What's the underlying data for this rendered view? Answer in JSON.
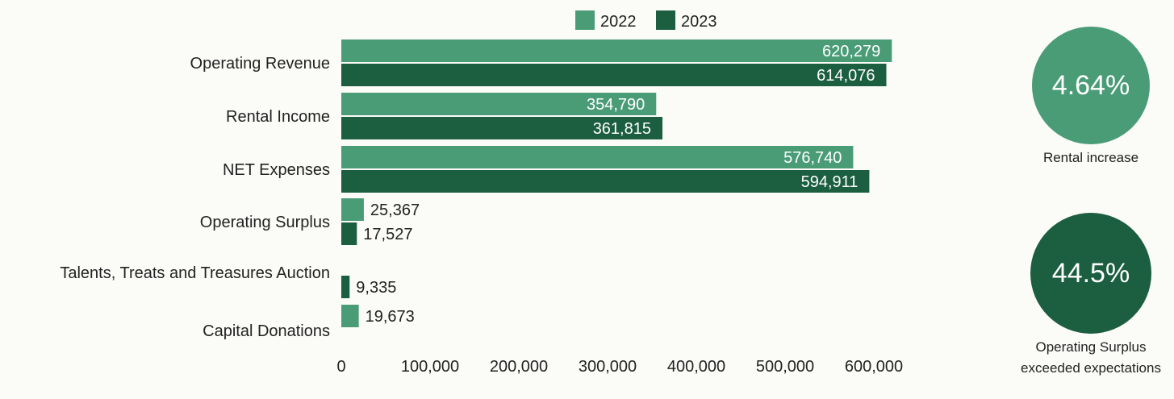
{
  "chart_data": {
    "type": "bar",
    "orientation": "horizontal",
    "categories": [
      "Operating Revenue",
      "Rental Income",
      "NET Expenses",
      "Operating Surplus",
      "Talents, Treats and Treasures Auction",
      "Capital Donations"
    ],
    "series": [
      {
        "name": "2022",
        "color": "#4a9c77",
        "values": [
          620279,
          354790,
          576740,
          25367,
          null,
          19673
        ]
      },
      {
        "name": "2023",
        "color": "#1b5e40",
        "values": [
          614076,
          361815,
          594911,
          17527,
          9335,
          null
        ]
      }
    ],
    "value_labels": {
      "2022": [
        "620,279",
        "354,790",
        "576,740",
        "25,367",
        "",
        "19,673"
      ],
      "2023": [
        "614,076",
        "361,815",
        "594,911",
        "17,527",
        "9,335",
        ""
      ]
    },
    "x_ticks": [
      0,
      100000,
      200000,
      300000,
      400000,
      500000,
      600000
    ],
    "x_tick_labels": [
      "0",
      "100,000",
      "200,000",
      "300,000",
      "400,000",
      "500,000",
      "600,000"
    ],
    "xlim": [
      0,
      600000
    ],
    "legend_position": "top-center",
    "grid": false
  },
  "stats": [
    {
      "value": "4.64%",
      "label": "Rental increase",
      "color": "#4a9c77"
    },
    {
      "value": "44.5%",
      "label": "Operating Surplus exceeded expectations",
      "color": "#1b5e40"
    }
  ]
}
